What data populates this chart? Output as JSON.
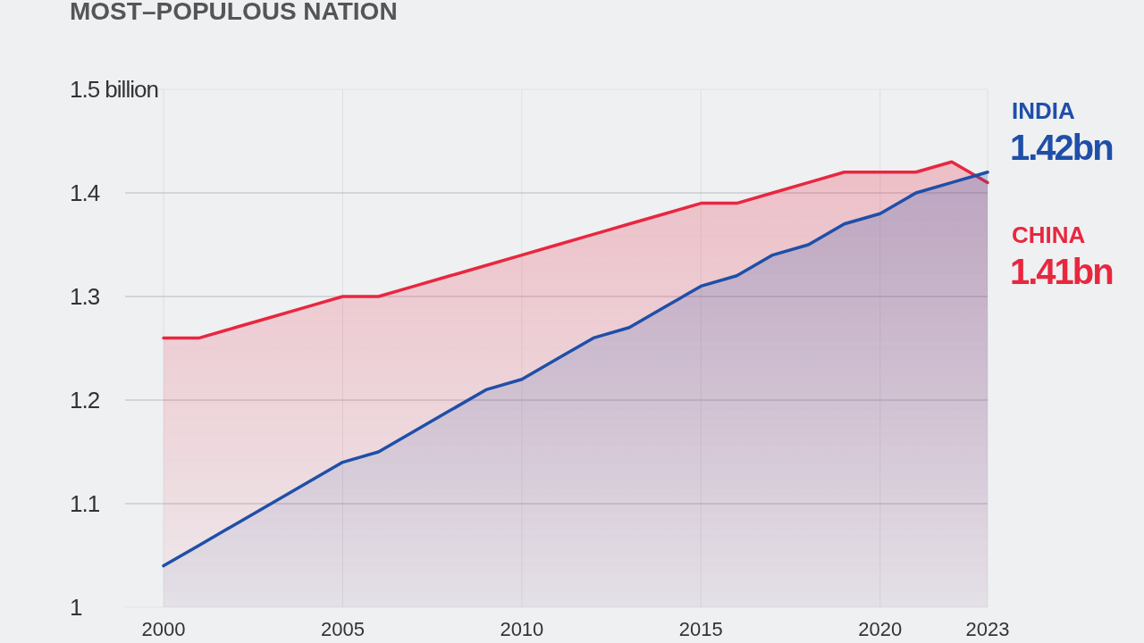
{
  "chart_data": {
    "type": "area",
    "title": "MOST–POPULOUS NATION",
    "x": [
      2000,
      2001,
      2002,
      2003,
      2004,
      2005,
      2006,
      2007,
      2008,
      2009,
      2010,
      2011,
      2012,
      2013,
      2014,
      2015,
      2016,
      2017,
      2018,
      2019,
      2020,
      2021,
      2022,
      2023
    ],
    "series": [
      {
        "name": "CHINA",
        "color": "#e8273f",
        "values": [
          1.26,
          1.26,
          1.27,
          1.28,
          1.29,
          1.3,
          1.3,
          1.31,
          1.32,
          1.33,
          1.34,
          1.35,
          1.36,
          1.37,
          1.38,
          1.39,
          1.39,
          1.4,
          1.41,
          1.42,
          1.42,
          1.42,
          1.43,
          1.41
        ]
      },
      {
        "name": "INDIA",
        "color": "#1f4fa8",
        "values": [
          1.04,
          1.06,
          1.08,
          1.1,
          1.12,
          1.14,
          1.15,
          1.17,
          1.19,
          1.21,
          1.22,
          1.24,
          1.26,
          1.27,
          1.29,
          1.31,
          1.32,
          1.34,
          1.35,
          1.37,
          1.38,
          1.4,
          1.41,
          1.42
        ]
      }
    ],
    "xlim": [
      2000,
      2023
    ],
    "xticks": [
      2000,
      2005,
      2010,
      2015,
      2020,
      2023
    ],
    "ylim": [
      1,
      1.5
    ],
    "yticks": [
      1,
      1.1,
      1.2,
      1.3,
      1.4,
      {
        "value": 1.5,
        "label": "1.5 billion"
      }
    ],
    "grid": true,
    "annotations": [
      {
        "text": "1.42bn",
        "x": 2023,
        "y": 1.42
      },
      {
        "text": "1.41bn",
        "x": 2023,
        "y": 1.41
      }
    ]
  }
}
